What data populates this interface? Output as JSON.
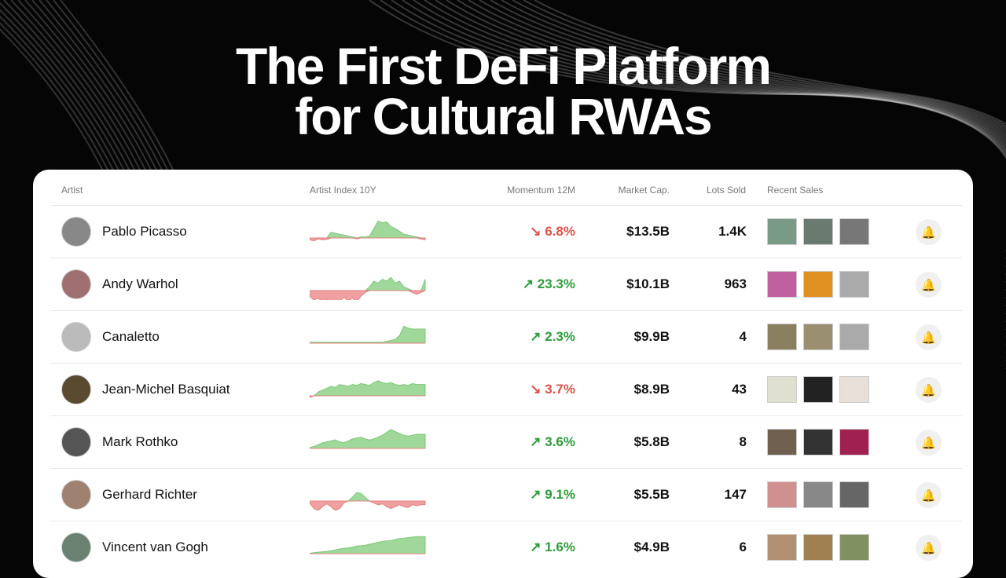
{
  "headline": [
    "The First DeFi Platform",
    "for Cultural RWAs"
  ],
  "table": {
    "headers": {
      "artist": "Artist",
      "index": "Artist Index 10Y",
      "momentum": "Momentum 12M",
      "market_cap": "Market Cap.",
      "lots": "Lots Sold",
      "recent": "Recent Sales"
    },
    "rows": [
      {
        "artist": "Pablo Picasso",
        "momentum": "↘ 6.8%",
        "trend": "down",
        "market_cap": "$13.5B",
        "lots": "1.4K",
        "avatar_color": "#888",
        "thumbs": [
          "#7a9a88",
          "#6a7a70",
          "#777"
        ],
        "spark": [
          -0.1,
          -0.15,
          -0.05,
          -0.1,
          -0.08,
          0.3,
          0.25,
          0.2,
          0.15,
          0.1,
          0.05,
          -0.05,
          0.05,
          0.05,
          0.1,
          0.5,
          0.9,
          0.8,
          0.85,
          0.6,
          0.5,
          0.35,
          0.2,
          0.15,
          0.1,
          0.05,
          -0.05,
          -0.1
        ]
      },
      {
        "artist": "Andy Warhol",
        "momentum": "↗ 23.3%",
        "trend": "up",
        "market_cap": "$10.1B",
        "lots": "963",
        "avatar_color": "#a07070",
        "thumbs": [
          "#c060a0",
          "#e09020",
          "#aaa"
        ],
        "spark": [
          -0.3,
          -0.5,
          -0.4,
          -0.6,
          -0.45,
          -0.7,
          -0.5,
          -0.6,
          -0.35,
          -0.55,
          -0.4,
          -0.6,
          -0.3,
          -0.1,
          0.2,
          0.5,
          0.4,
          0.6,
          0.5,
          0.7,
          0.4,
          0.5,
          0.2,
          0.1,
          -0.1,
          -0.2,
          -0.1,
          0.6
        ]
      },
      {
        "artist": "Canaletto",
        "momentum": "↗ 2.3%",
        "trend": "up",
        "market_cap": "$9.9B",
        "lots": "4",
        "avatar_color": "#bbb",
        "thumbs": [
          "#8a8060",
          "#9a9070",
          "#aaa"
        ],
        "spark": [
          0.05,
          0.05,
          0.05,
          0.05,
          0.05,
          0.05,
          0.05,
          0.05,
          0.05,
          0.05,
          0.05,
          0.05,
          0.05,
          0.05,
          0.05,
          0.05,
          0.05,
          0.05,
          0.1,
          0.15,
          0.2,
          0.4,
          0.9,
          0.8,
          0.75,
          0.75,
          0.75,
          0.75
        ]
      },
      {
        "artist": "Jean-Michel Basquiat",
        "momentum": "↘ 3.7%",
        "trend": "down",
        "market_cap": "$8.9B",
        "lots": "43",
        "avatar_color": "#5a4a30",
        "thumbs": [
          "#e0e0d0",
          "#222",
          "#e8e0d8"
        ],
        "spark": [
          -0.1,
          0,
          0.2,
          0.3,
          0.4,
          0.5,
          0.45,
          0.6,
          0.55,
          0.5,
          0.6,
          0.55,
          0.65,
          0.6,
          0.55,
          0.7,
          0.8,
          0.7,
          0.65,
          0.7,
          0.6,
          0.55,
          0.6,
          0.55,
          0.65,
          0.6,
          0.6,
          0.6
        ]
      },
      {
        "artist": "Mark Rothko",
        "momentum": "↗ 3.6%",
        "trend": "up",
        "market_cap": "$5.8B",
        "lots": "8",
        "avatar_color": "#555",
        "thumbs": [
          "#706050",
          "#333",
          "#a02050"
        ],
        "spark": [
          0.05,
          0.1,
          0.2,
          0.3,
          0.35,
          0.4,
          0.45,
          0.35,
          0.3,
          0.4,
          0.5,
          0.55,
          0.6,
          0.5,
          0.45,
          0.5,
          0.6,
          0.7,
          0.85,
          1.0,
          0.9,
          0.8,
          0.7,
          0.65,
          0.7,
          0.75,
          0.75,
          0.75
        ]
      },
      {
        "artist": "Gerhard Richter",
        "momentum": "↗ 9.1%",
        "trend": "up",
        "market_cap": "$5.5B",
        "lots": "147",
        "avatar_color": "#a08070",
        "thumbs": [
          "#d09090",
          "#888",
          "#666"
        ],
        "spark": [
          -0.1,
          -0.4,
          -0.5,
          -0.3,
          -0.15,
          -0.3,
          -0.5,
          -0.4,
          -0.1,
          0,
          0.2,
          0.45,
          0.4,
          0.2,
          0,
          -0.1,
          -0.2,
          -0.15,
          -0.3,
          -0.4,
          -0.3,
          -0.2,
          -0.3,
          -0.35,
          -0.2,
          -0.25,
          -0.2,
          -0.2
        ]
      },
      {
        "artist": "Vincent van Gogh",
        "momentum": "↗ 1.6%",
        "trend": "up",
        "market_cap": "$4.9B",
        "lots": "6",
        "avatar_color": "#6a8070",
        "thumbs": [
          "#b09070",
          "#a08050",
          "#809060"
        ],
        "spark": [
          0.02,
          0.05,
          0.08,
          0.1,
          0.12,
          0.15,
          0.2,
          0.25,
          0.28,
          0.3,
          0.35,
          0.4,
          0.42,
          0.45,
          0.5,
          0.55,
          0.6,
          0.65,
          0.68,
          0.7,
          0.75,
          0.8,
          0.82,
          0.85,
          0.88,
          0.9,
          0.9,
          0.9
        ]
      }
    ]
  },
  "colors": {
    "up": "#2a9d3a",
    "down": "#e0504a",
    "spark_up": "#9fd89a",
    "spark_down": "#f0a0a0"
  }
}
